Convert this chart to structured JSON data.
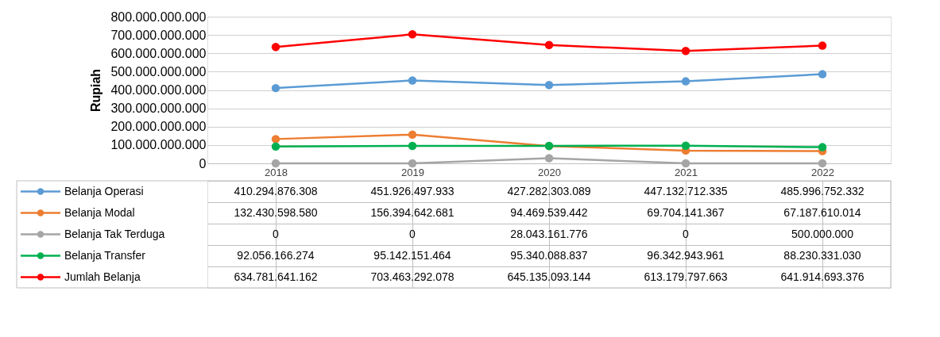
{
  "chart_data": {
    "type": "line",
    "ylabel": "Rupiah",
    "categories": [
      "2018",
      "2019",
      "2020",
      "2021",
      "2022"
    ],
    "ylim": [
      0,
      800000000000
    ],
    "yticks": [
      0,
      {
        "value": 100000000000,
        "label": "100.000.000.000"
      },
      {
        "value": 200000000000,
        "label": "200.000.000.000"
      },
      {
        "value": 300000000000,
        "label": "300.000.000.000"
      },
      {
        "value": 400000000000,
        "label": "400.000.000.000"
      },
      {
        "value": 500000000000,
        "label": "500.000.000.000"
      },
      {
        "value": 600000000000,
        "label": "600.000.000.000"
      },
      {
        "value": 700000000000,
        "label": "700.000.000.000"
      },
      {
        "value": 800000000000,
        "label": "800.000.000.000"
      }
    ],
    "grid": "y",
    "marker": "circle",
    "legend": "bottom left",
    "series": [
      {
        "name": "Belanja Operasi",
        "color": "#5b9bd5",
        "values": [
          410294876308,
          451926497933,
          427282303089,
          447132712335,
          485996752332
        ],
        "value_labels": [
          "410.294.876.308",
          "451.926.497.933",
          "427.282.303.089",
          "447.132.712.335",
          "485.996.752.332"
        ]
      },
      {
        "name": "Belanja Modal",
        "color": "#ed7d31",
        "values": [
          132430598580,
          156394642681,
          94469539442,
          69704141367,
          67187610014
        ],
        "value_labels": [
          "132.430.598.580",
          "156.394.642.681",
          "94.469.539.442",
          "69.704.141.367",
          "67.187.610.014"
        ]
      },
      {
        "name": "Belanja Tak Terduga",
        "color": "#a5a5a5",
        "values": [
          0,
          0,
          28043161776,
          0,
          500000000
        ],
        "value_labels": [
          "0",
          "0",
          "28.043.161.776",
          "0",
          "500.000.000"
        ]
      },
      {
        "name": "Belanja Transfer",
        "color": "#00b050",
        "values": [
          92056166274,
          95142151464,
          95340088837,
          96342943961,
          88230331030
        ],
        "value_labels": [
          "92.056.166.274",
          "95.142.151.464",
          "95.340.088.837",
          "96.342.943.961",
          "88.230.331.030"
        ]
      },
      {
        "name": "Jumlah Belanja",
        "color": "#ff0000",
        "values": [
          634781641162,
          703463292078,
          645135093144,
          613179797663,
          641914693376
        ],
        "value_labels": [
          "634.781.641.162",
          "703.463.292.078",
          "645.135.093.144",
          "613.179.797.663",
          "641.914.693.376"
        ]
      }
    ]
  }
}
